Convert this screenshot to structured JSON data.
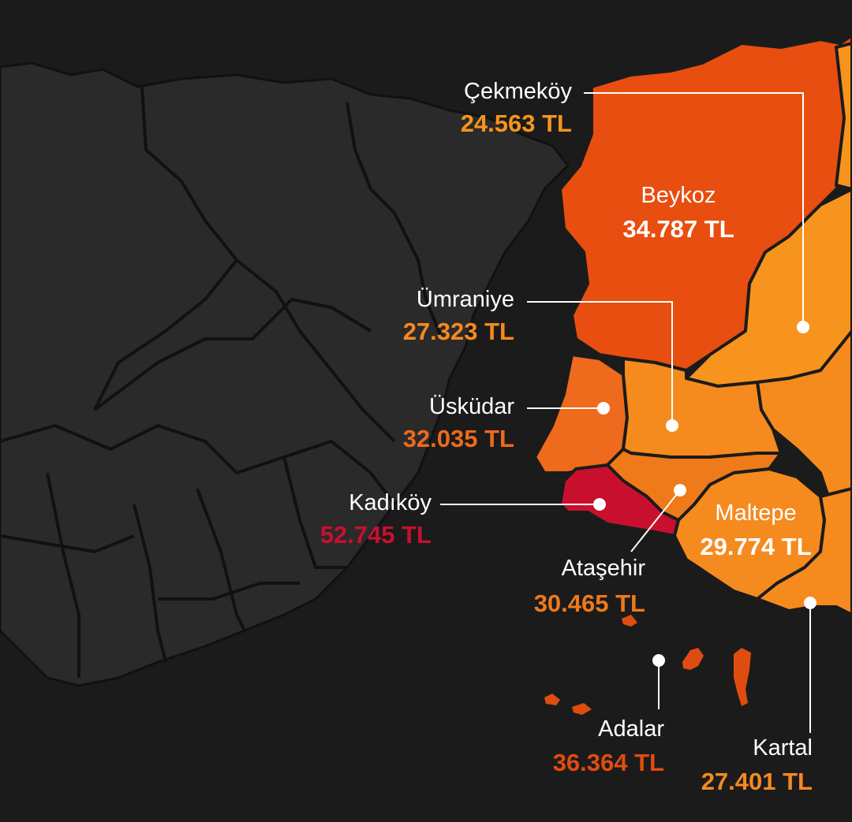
{
  "colors": {
    "water": "#1b1b1b",
    "europe_land": "#2a2a2a",
    "district_border": "#111111",
    "leader_line": "#ffffff",
    "price_low": "#f7941d",
    "price_mid": "#ee6a1c",
    "price_high": "#e04c10",
    "price_top": "#c8102e"
  },
  "districts": [
    {
      "id": "cekmekoy",
      "name": "Çekmeköy",
      "price": "24.563 TL",
      "color": "#f7941d"
    },
    {
      "id": "beykoz",
      "name": "Beykoz",
      "price": "34.787 TL",
      "color": "#e84e0f"
    },
    {
      "id": "umraniye",
      "name": "Ümraniye",
      "price": "27.323 TL",
      "color": "#f58a1f"
    },
    {
      "id": "uskudar",
      "name": "Üsküdar",
      "price": "32.035 TL",
      "color": "#ee6a1c"
    },
    {
      "id": "kadikoy",
      "name": "Kadıköy",
      "price": "52.745 TL",
      "color": "#c8102e"
    },
    {
      "id": "atasehir",
      "name": "Ataşehir",
      "price": "30.465 TL",
      "color": "#ef7a1a"
    },
    {
      "id": "maltepe",
      "name": "Maltepe",
      "price": "29.774 TL",
      "color": "#f58a1f"
    },
    {
      "id": "adalar",
      "name": "Adalar",
      "price": "36.364 TL",
      "color": "#e04c10"
    },
    {
      "id": "kartal",
      "name": "Kartal",
      "price": "27.401 TL",
      "color": "#f58a1f"
    }
  ]
}
